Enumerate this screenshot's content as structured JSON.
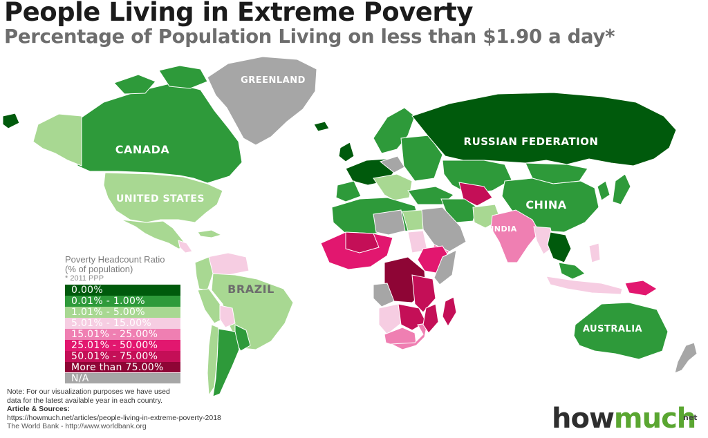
{
  "title": "People Living in Extreme Poverty",
  "subtitle": "Percentage of Population Living on less than $1.90 a day*",
  "colors": {
    "zero": "#005a0c",
    "lt1": "#2e9a3a",
    "lt5": "#a8d892",
    "lt15": "#f6cde2",
    "lt25": "#ef7fb2",
    "lt50": "#e2176f",
    "lt75": "#c40f57",
    "gt75": "#8e0535",
    "na": "#a6a6a6",
    "brand_green": "#5aa631"
  },
  "map_labels": {
    "greenland": "GREENLAND",
    "canada": "CANADA",
    "russia": "RUSSIAN FEDERATION",
    "us": "UNITED STATES",
    "china": "CHINA",
    "india": "INDIA",
    "brazil": "BRAZIL",
    "australia": "AUSTRALIA"
  },
  "legend": {
    "title": "Poverty Headcount Ratio",
    "subtitle": "(% of population)",
    "note": "* 2011 PPP",
    "items": [
      {
        "label": "0.00%",
        "color": "#005a0c"
      },
      {
        "label": "0.01% - 1.00%",
        "color": "#2e9a3a"
      },
      {
        "label": "1.01% - 5.00%",
        "color": "#a8d892"
      },
      {
        "label": "5.01% - 15.00%",
        "color": "#f6cde2"
      },
      {
        "label": "15.01% - 25.00%",
        "color": "#ef7fb2"
      },
      {
        "label": "25.01% - 50.00%",
        "color": "#e2176f"
      },
      {
        "label": "50.01% - 75.00%",
        "color": "#c40f57"
      },
      {
        "label": "More than 75.00%",
        "color": "#8e0535"
      },
      {
        "label": "N/A",
        "color": "#a6a6a6"
      }
    ]
  },
  "footer": {
    "note_line1": "Note: For our visualization purposes we have used",
    "note_line2": "data for the latest available year in each country.",
    "sources_heading": "Article & Sources:",
    "source_url": "https://howmuch.net/articles/people-living-in-extreme-poverty-2018",
    "source_bank": "The World Bank - http://www.worldbank.org"
  },
  "brand": {
    "part1": "how",
    "part2": "much",
    "suffix": "net"
  }
}
